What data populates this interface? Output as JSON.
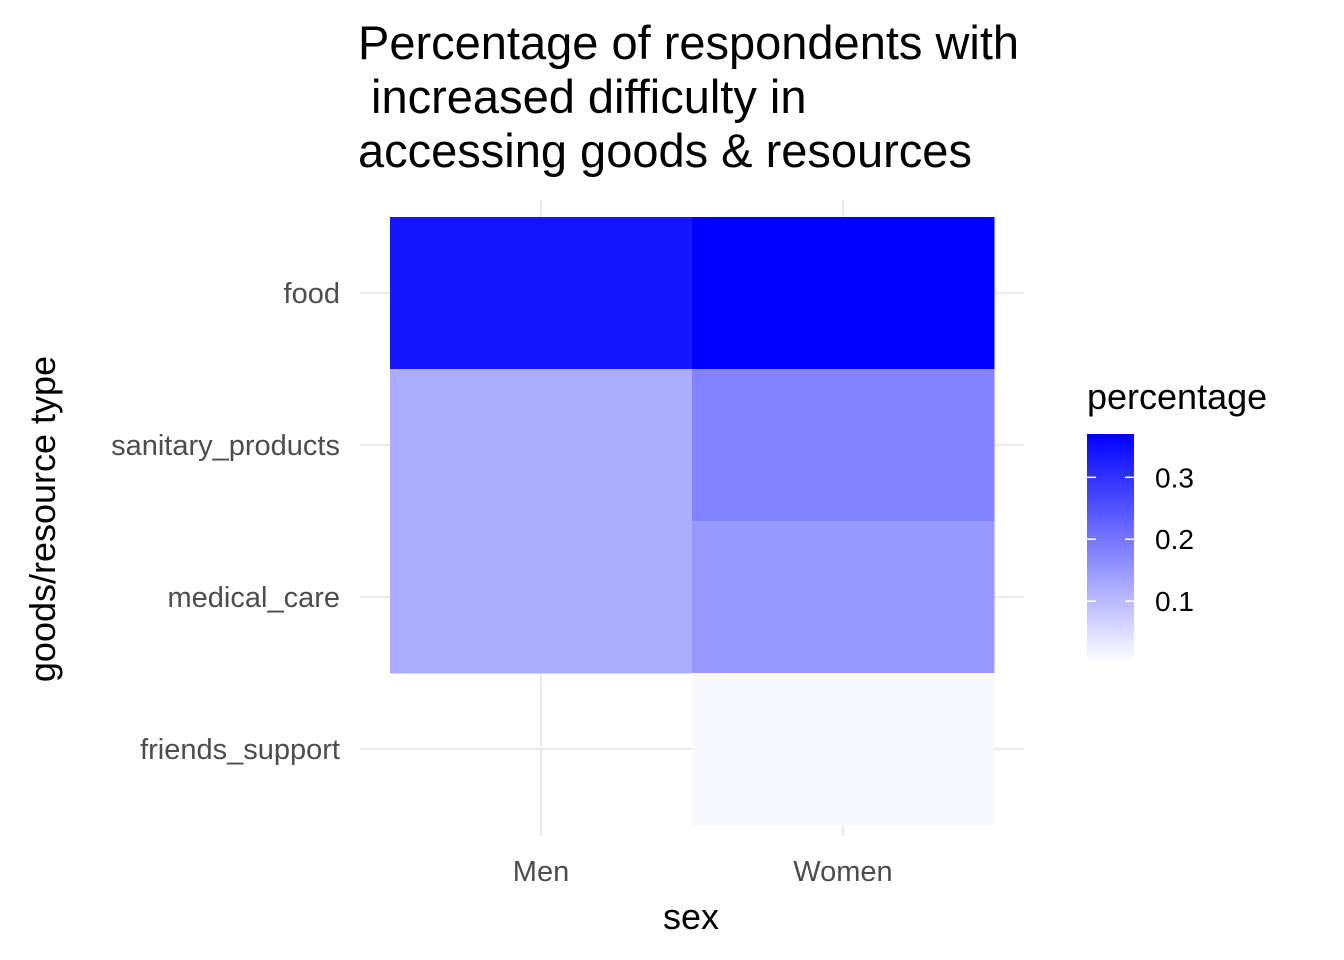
{
  "chart_data": {
    "type": "heatmap",
    "title": "Percentage of respondents with\n increased difficulty in\naccessing goods & resources",
    "xlabel": "sex",
    "ylabel": "goods/resource type",
    "x_categories": [
      "Men",
      "Women"
    ],
    "y_categories": [
      "food",
      "sanitary_products",
      "medical_care",
      "friends_support"
    ],
    "cells": [
      {
        "x": "Men",
        "y": "food",
        "value": 0.34
      },
      {
        "x": "Women",
        "y": "food",
        "value": 0.37
      },
      {
        "x": "Men",
        "y": "sanitary_products",
        "value": 0.12
      },
      {
        "x": "Women",
        "y": "sanitary_products",
        "value": 0.18
      },
      {
        "x": "Men",
        "y": "medical_care",
        "value": 0.12
      },
      {
        "x": "Women",
        "y": "medical_care",
        "value": 0.15
      },
      {
        "x": "Women",
        "y": "friends_support",
        "value": 0.01
      }
    ],
    "legend": {
      "title": "percentage",
      "position": "right",
      "range": [
        0.0,
        0.37
      ],
      "breaks": [
        0.1,
        0.2,
        0.3
      ],
      "break_labels": [
        "0.1",
        "0.2",
        "0.3"
      ],
      "low_color": "#ffffff",
      "high_color": "#0000ff"
    },
    "grid": true
  }
}
